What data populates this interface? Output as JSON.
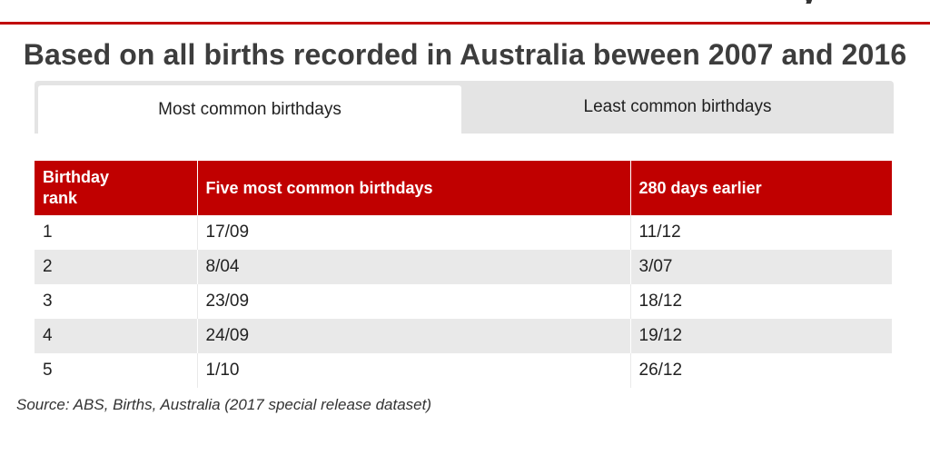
{
  "header": {
    "cut_off_glyph": "y",
    "accent_color": "#c00000",
    "headline": "Based on all births recorded in Australia beween 2007 and 2016"
  },
  "tabs": [
    {
      "label": "Most common birthdays",
      "active": true
    },
    {
      "label": "Least common birthdays",
      "active": false
    }
  ],
  "table": {
    "columns": [
      "Birthday rank",
      "Five most common birthdays",
      "280 days earlier"
    ],
    "rows": [
      [
        "1",
        "17/09",
        "11/12"
      ],
      [
        "2",
        "8/04",
        "3/07"
      ],
      [
        "3",
        "23/09",
        "18/12"
      ],
      [
        "4",
        "24/09",
        "19/12"
      ],
      [
        "5",
        "1/10",
        "26/12"
      ]
    ]
  },
  "footer": {
    "source": "Source: ABS, Births, Australia (2017 special release dataset)"
  }
}
